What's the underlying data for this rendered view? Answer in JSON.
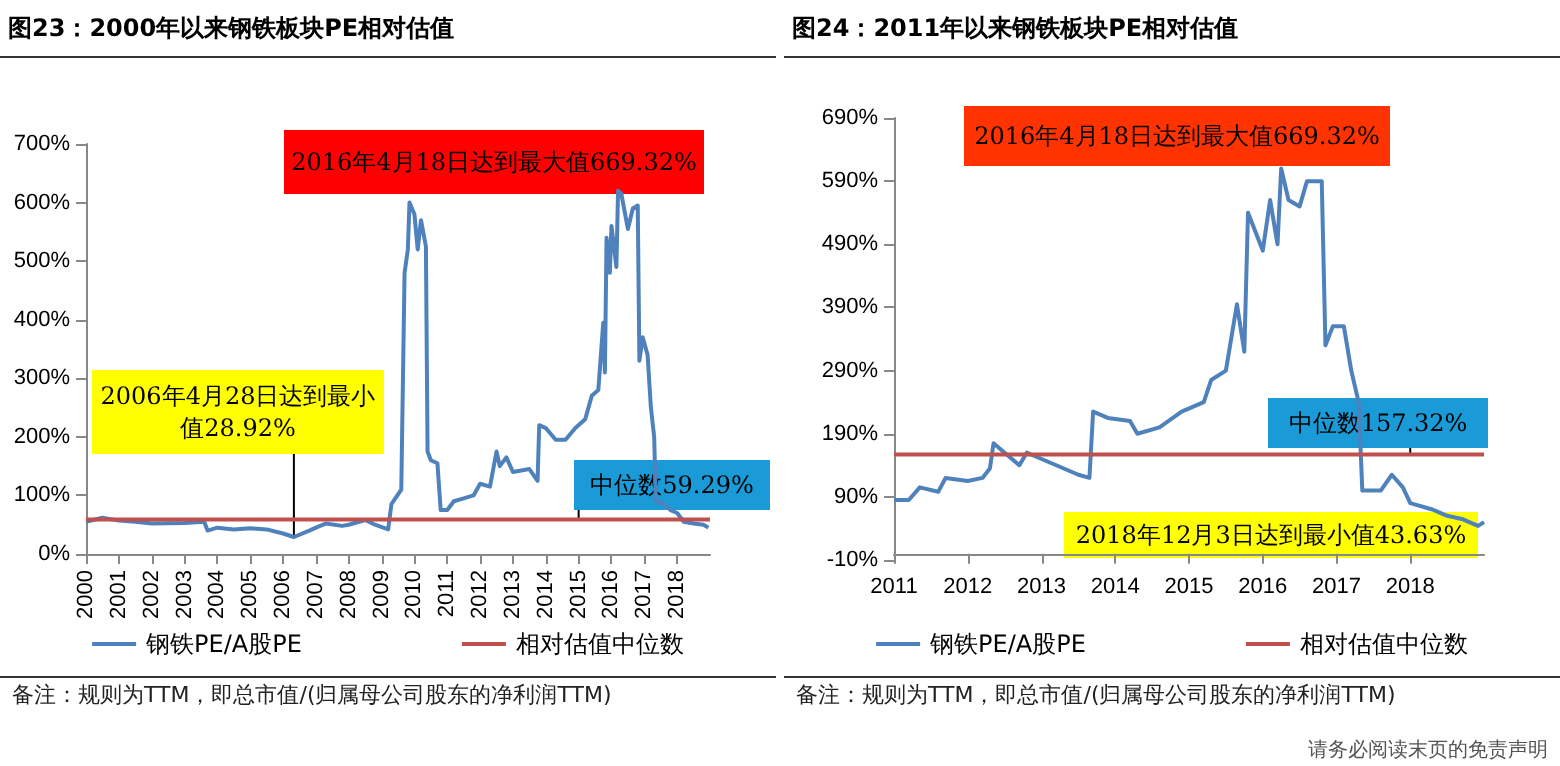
{
  "chart_data": [
    {
      "type": "line",
      "title": "图23：2000年以来钢铁板块PE相对估值",
      "legend": "bottom",
      "grid": false,
      "marker": "none",
      "line_style": "solid",
      "xlim": [
        2000,
        2019
      ],
      "xticks": [
        2000,
        2001,
        2002,
        2003,
        2004,
        2005,
        2006,
        2007,
        2008,
        2009,
        2010,
        2011,
        2012,
        2013,
        2014,
        2015,
        2016,
        2017,
        2018
      ],
      "ylim": [
        0,
        700
      ],
      "yticks": [
        {
          "value": 0,
          "label": "0%"
        },
        {
          "value": 100,
          "label": "100%"
        },
        {
          "value": 200,
          "label": "200%"
        },
        {
          "value": 300,
          "label": "300%"
        },
        {
          "value": 400,
          "label": "400%"
        },
        {
          "value": 500,
          "label": "500%"
        },
        {
          "value": 600,
          "label": "600%"
        },
        {
          "value": 700,
          "label": "700%"
        }
      ],
      "series": [
        {
          "name": "钢铁PE/A股PE",
          "color": "#4f81bd",
          "x": [
            2000.0,
            2000.5,
            2001,
            2001.5,
            2002,
            2003,
            2003.6,
            2003.7,
            2004,
            2004.5,
            2005,
            2005.5,
            2006,
            2006.33,
            2006.8,
            2007,
            2007.3,
            2007.8,
            2008,
            2008.5,
            2008.8,
            2009.2,
            2009.3,
            2009.6,
            2009.7,
            2009.8,
            2009.85,
            2010.0,
            2010.1,
            2010.2,
            2010.35,
            2010.4,
            2010.5,
            2010.7,
            2010.8,
            2011.0,
            2011.2,
            2011.5,
            2011.8,
            2012.0,
            2012.3,
            2012.5,
            2012.6,
            2012.8,
            2013.0,
            2013.5,
            2013.75,
            2013.8,
            2014.0,
            2014.3,
            2014.6,
            2014.9,
            2015.2,
            2015.4,
            2015.6,
            2015.75,
            2015.8,
            2015.85,
            2015.95,
            2016.0,
            2016.15,
            2016.2,
            2016.3,
            2016.5,
            2016.65,
            2016.8,
            2016.85,
            2016.95,
            2017.1,
            2017.2,
            2017.3,
            2017.35,
            2017.6,
            2017.8,
            2018.0,
            2018.2,
            2018.5,
            2018.8,
            2018.95
          ],
          "values": [
            55,
            62,
            57,
            55,
            52,
            53,
            55,
            40,
            45,
            42,
            44,
            42,
            35,
            29,
            40,
            45,
            52,
            48,
            50,
            58,
            50,
            42,
            85,
            110,
            480,
            520,
            600,
            580,
            520,
            570,
            525,
            175,
            160,
            155,
            75,
            75,
            90,
            95,
            100,
            120,
            115,
            175,
            150,
            165,
            140,
            145,
            125,
            220,
            215,
            195,
            195,
            215,
            230,
            270,
            280,
            395,
            310,
            540,
            480,
            560,
            490,
            620,
            615,
            555,
            590,
            595,
            330,
            370,
            340,
            250,
            200,
            90,
            85,
            75,
            70,
            55,
            52,
            50,
            45
          ]
        },
        {
          "name": "相对估值中位数",
          "color": "#c0504d",
          "x": [
            2000,
            2019
          ],
          "values": [
            59,
            59
          ]
        }
      ],
      "annotations": [
        "2016年4月18日达到最大值669.32%",
        {
          "text": "2006年4月28日达到最小值28.92%",
          "x": 2006.33,
          "y": 28.92
        },
        {
          "text": "中位数59.29%",
          "x": 2015,
          "y": 59.29
        },
        "备注：规则为TTM，即总市值/(归属母公司股东的净利润TTM)"
      ]
    },
    {
      "type": "line",
      "title": "图24：2011年以来钢铁板块PE相对估值",
      "legend": "bottom",
      "grid": false,
      "marker": "none",
      "line_style": "solid",
      "xlim": [
        2011,
        2019
      ],
      "xticks": [
        2011,
        2012,
        2013,
        2014,
        2015,
        2016,
        2017,
        2018
      ],
      "ylim": [
        -10,
        690
      ],
      "yticks": [
        {
          "value": -10,
          "label": "-10%"
        },
        {
          "value": 90,
          "label": "90%"
        },
        {
          "value": 190,
          "label": "190%"
        },
        {
          "value": 290,
          "label": "290%"
        },
        {
          "value": 390,
          "label": "390%"
        },
        {
          "value": 490,
          "label": "490%"
        },
        {
          "value": 590,
          "label": "590%"
        },
        {
          "value": 690,
          "label": "690%"
        }
      ],
      "series": [
        {
          "name": "钢铁PE/A股PE",
          "color": "#4f81bd",
          "x": [
            2011.0,
            2011.2,
            2011.35,
            2011.6,
            2011.7,
            2012.0,
            2012.2,
            2012.3,
            2012.35,
            2012.5,
            2012.7,
            2012.8,
            2013.0,
            2013.2,
            2013.5,
            2013.65,
            2013.7,
            2013.9,
            2014.2,
            2014.3,
            2014.6,
            2014.9,
            2015.2,
            2015.3,
            2015.5,
            2015.65,
            2015.75,
            2015.8,
            2016.0,
            2016.1,
            2016.2,
            2016.25,
            2016.35,
            2016.5,
            2016.6,
            2016.8,
            2016.85,
            2016.95,
            2017.1,
            2017.2,
            2017.3,
            2017.35,
            2017.6,
            2017.75,
            2017.9,
            2018.0,
            2018.3,
            2018.5,
            2018.7,
            2018.8,
            2018.92,
            2019.0
          ],
          "values": [
            85,
            85,
            105,
            98,
            120,
            115,
            120,
            135,
            175,
            160,
            140,
            160,
            150,
            140,
            125,
            120,
            225,
            215,
            210,
            190,
            200,
            225,
            240,
            275,
            290,
            395,
            320,
            540,
            480,
            560,
            490,
            610,
            560,
            550,
            590,
            590,
            330,
            360,
            360,
            290,
            240,
            100,
            100,
            125,
            105,
            80,
            70,
            60,
            55,
            50,
            44,
            50
          ]
        },
        {
          "name": "相对估值中位数",
          "color": "#c0504d",
          "x": [
            2011,
            2019
          ],
          "values": [
            157,
            157
          ]
        }
      ],
      "annotations": [
        "2016年4月18日达到最大值669.32%",
        {
          "text": "中位数157.32%",
          "x": 2018,
          "y": 157.32
        },
        {
          "text": "2018年12月3日达到最小值43.63%",
          "x": 2018.92,
          "y": 43.63
        },
        "备注：规则为TTM，即总市值/(归属母公司股东的净利润TTM)",
        "请务必阅读末页的免责声明"
      ]
    }
  ]
}
